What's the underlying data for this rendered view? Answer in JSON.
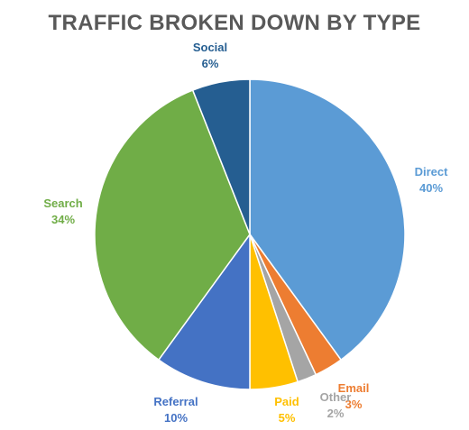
{
  "chart_data": {
    "type": "pie",
    "title": "TRAFFIC BROKEN DOWN BY TYPE",
    "slices": [
      {
        "label": "Direct",
        "value": 40,
        "pct_label": "40%",
        "color": "#5B9BD5"
      },
      {
        "label": "Email",
        "value": 3,
        "pct_label": "3%",
        "color": "#ED7D31"
      },
      {
        "label": "Other",
        "value": 2,
        "pct_label": "2%",
        "color": "#A5A5A5"
      },
      {
        "label": "Paid",
        "value": 5,
        "pct_label": "5%",
        "color": "#FFC000"
      },
      {
        "label": "Referral",
        "value": 10,
        "pct_label": "10%",
        "color": "#4472C4"
      },
      {
        "label": "Search",
        "value": 34,
        "pct_label": "34%",
        "color": "#70AD47"
      },
      {
        "label": "Social",
        "value": 6,
        "pct_label": "6%",
        "color": "#255E91"
      }
    ]
  }
}
